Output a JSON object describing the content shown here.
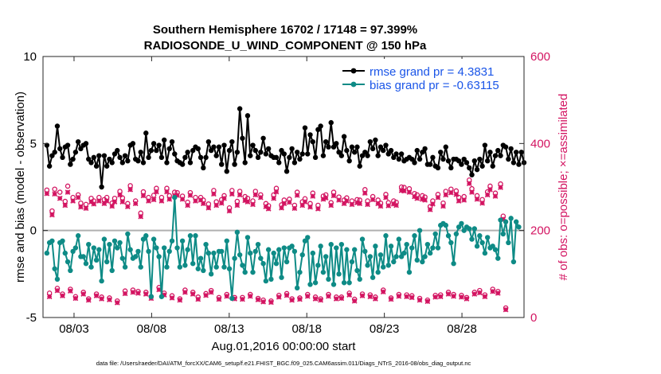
{
  "chart_data": {
    "type": "line",
    "title_line1": "Southern Hemisphere 16702 / 17148 = 97.399%",
    "title_line2": "RADIOSONDE_U_WIND_COMPONENT @ 150 hPa",
    "ylabel_left": "rmse and bias (model - observation)",
    "ylabel_right": "# of obs: o=possible; ×=assimilated",
    "xlabel": "Aug.01,2016 00:00:00 start",
    "footer": "data file: /Users/raeder/DAI/ATM_forcXX/CAM6_setup/f.e21.FHIST_BGC.f09_025.CAM6assim.011/Diags_NTrS_2016-08/obs_diag_output.nc",
    "ylim_left": [
      -5,
      10
    ],
    "ylim_right": [
      0,
      600
    ],
    "xlim_days": [
      0,
      31
    ],
    "yticks_left": [
      -5,
      0,
      5,
      10
    ],
    "yticks_left_labels": [
      "-5",
      "0",
      "5",
      "10"
    ],
    "yticks_right": [
      0,
      200,
      400,
      600
    ],
    "yticks_right_labels": [
      "0",
      "200",
      "400",
      "600"
    ],
    "xticks_days": [
      2,
      7,
      12,
      17,
      22,
      27
    ],
    "xtick_labels": [
      "08/03",
      "08/08",
      "08/13",
      "08/18",
      "08/23",
      "08/28"
    ],
    "colors": {
      "rmse": "#000000",
      "bias": "#0e8b86",
      "obs": "#d31461",
      "zero": "#b0b0b0",
      "legend_text": "#1a55e8"
    },
    "legend": [
      {
        "name": "rmse grand pr = 4.3831",
        "series": "rmse"
      },
      {
        "name": "bias grand pr = -0.63115",
        "series": "bias"
      }
    ],
    "rmse": [
      4.9,
      3.7,
      4.3,
      4.5,
      6.0,
      4.7,
      4.2,
      4.8,
      4.9,
      3.8,
      4.1,
      4.5,
      5.1,
      4.7,
      4.9,
      5.0,
      4.1,
      3.9,
      4.2,
      3.7,
      4.3,
      2.5,
      4.3,
      3.7,
      4.1,
      3.9,
      4.4,
      4.6,
      4.2,
      3.9,
      4.3,
      4.0,
      4.9,
      5.0,
      4.1,
      4.0,
      4.5,
      3.9,
      5.6,
      4.2,
      4.6,
      5.0,
      4.6,
      4.9,
      4.2,
      5.2,
      3.9,
      4.7,
      5.1,
      4.4,
      4.0,
      3.9,
      3.8,
      4.2,
      4.5,
      3.9,
      4.6,
      4.8,
      4.7,
      4.2,
      3.6,
      4.2,
      5.1,
      4.6,
      4.8,
      4.3,
      4.8,
      3.8,
      4.9,
      3.4,
      4.6,
      5.1,
      3.8,
      4.5,
      7.0,
      5.3,
      3.9,
      6.6,
      4.3,
      4.9,
      4.6,
      4.2,
      4.5,
      5.3,
      4.4,
      4.7,
      4.3,
      4.2,
      4.2,
      3.9,
      4.6,
      4.4,
      3.4,
      4.2,
      4.7,
      3.9,
      4.5,
      4.1,
      4.4,
      5.9,
      4.4,
      5.5,
      5.1,
      4.2,
      5.8,
      6.0,
      4.3,
      5.1,
      4.8,
      6.2,
      4.8,
      5.0,
      4.5,
      4.3,
      5.4,
      4.6,
      4.0,
      4.8,
      4.5,
      4.8,
      3.7,
      4.3,
      4.5,
      4.3,
      5.1,
      4.7,
      5.2,
      4.3,
      4.8,
      4.6,
      4.9,
      4.4,
      4.6,
      4.2,
      4.4,
      4.1,
      4.4,
      4.0,
      4.1,
      4.2,
      4.1,
      3.9,
      4.6,
      4.1,
      4.5,
      4.7,
      3.8,
      3.8,
      4.2,
      3.7,
      3.6,
      4.5,
      4.1,
      4.8,
      4.0,
      3.6,
      4.1,
      4.1,
      4.0,
      3.8,
      4.1,
      3.9,
      3.6,
      3.2,
      4.0,
      3.5,
      4.1,
      3.7,
      4.9,
      4.0,
      4.5,
      3.7,
      4.3,
      4.6,
      4.3,
      4.9,
      4.8,
      4.1,
      4.7,
      3.9,
      4.5,
      3.8,
      4.5,
      3.9
    ],
    "bias": [
      -1.3,
      -0.7,
      -0.6,
      -2.2,
      -2.8,
      -0.7,
      -0.6,
      -1.3,
      -1.8,
      -2.3,
      -1.2,
      -1.0,
      -0.3,
      -1.5,
      -1.5,
      -1.9,
      -0.8,
      -2.1,
      -1.0,
      -1.7,
      -1.1,
      -2.9,
      -0.5,
      -1.8,
      -0.8,
      -2.3,
      -0.6,
      -1.0,
      -0.7,
      -1.6,
      -2.1,
      -0.2,
      -1.1,
      -1.6,
      -1.5,
      -1.2,
      -2.1,
      -0.5,
      -0.3,
      -1.2,
      -3.8,
      -0.5,
      -1.0,
      -1.5,
      -3.8,
      -1.0,
      -2.1,
      -1.2,
      -0.6,
      1.9,
      -1.0,
      -2.1,
      -0.6,
      -2.0,
      -1.1,
      -0.3,
      -1.9,
      -0.3,
      -2.2,
      -1.6,
      -2.3,
      -0.8,
      -1.3,
      -2.5,
      -1.3,
      -2.1,
      -1.2,
      -1.2,
      -2.1,
      -0.6,
      -2.2,
      -3.9,
      -1.6,
      -0.1,
      -1.4,
      -2.0,
      -2.4,
      -0.4,
      -1.3,
      -2.4,
      -1.2,
      -0.8,
      -1.6,
      -1.9,
      -2.9,
      -1.1,
      -2.8,
      -1.3,
      -1.9,
      -1.1,
      -2.7,
      -1.0,
      -1.8,
      -1.0,
      -0.9,
      -1.2,
      -3.3,
      -2.4,
      -1.4,
      -0.6,
      -0.4,
      -3.1,
      -1.3,
      -3.0,
      -2.0,
      -0.9,
      -2.4,
      -1.5,
      -2.8,
      -0.8,
      -3.1,
      -1.0,
      -2.5,
      -0.8,
      -3.0,
      -1.1,
      -3.0,
      -1.8,
      -1.1,
      -2.3,
      -2.8,
      -0.5,
      -1.2,
      -2.0,
      -1.5,
      -2.7,
      -0.9,
      -2.4,
      -1.4,
      -2.1,
      -0.3,
      -2.0,
      -0.9,
      -1.8,
      -1.5,
      -0.5,
      -1.5,
      -1.3,
      -0.8,
      -2.4,
      -1.0,
      -0.3,
      -1.7,
      0.0,
      -1.8,
      -1.5,
      -0.8,
      -1.3,
      -1.0,
      -0.2,
      -1.0,
      0.3,
      0.4,
      0.3,
      -0.3,
      -0.7,
      -1.9,
      -0.2,
      0.2,
      0.4,
      0.0,
      0.2,
      0.1,
      -0.5,
      0.1,
      -0.9,
      -0.3,
      -0.7,
      -1.3,
      -0.4,
      -1.0,
      -0.9,
      -1.1,
      -1.6,
      0.6,
      -0.2,
      0.5,
      -0.7,
      0.7,
      -1.8,
      0.5,
      0.2
    ],
    "possible": [
      293,
      56,
      245,
      295,
      67,
      288,
      54,
      267,
      302,
      65,
      276,
      48,
      282,
      263,
      58,
      260,
      43,
      274,
      268,
      54,
      276,
      47,
      271,
      276,
      45,
      263,
      274,
      38,
      290,
      275,
      61,
      262,
      303,
      63,
      268,
      60,
      240,
      289,
      58,
      276,
      48,
      281,
      297,
      69,
      276,
      56,
      297,
      280,
      50,
      288,
      287,
      43,
      279,
      63,
      265,
      287,
      58,
      276,
      47,
      276,
      270,
      55,
      261,
      62,
      292,
      266,
      46,
      271,
      280,
      53,
      252,
      292,
      46,
      267,
      290,
      46,
      278,
      274,
      53,
      268,
      290,
      44,
      282,
      40,
      262,
      257,
      38,
      282,
      297,
      51,
      259,
      270,
      55,
      272,
      43,
      258,
      288,
      45,
      266,
      273,
      53,
      262,
      286,
      47,
      258,
      43,
      279,
      282,
      53,
      264,
      288,
      47,
      277,
      47,
      270,
      275,
      56,
      268,
      42,
      271,
      270,
      54,
      294,
      268,
      52,
      278,
      47,
      270,
      263,
      63,
      283,
      264,
      45,
      268,
      265,
      53,
      300,
      299,
      52,
      296,
      50,
      285,
      282,
      44,
      280,
      277,
      40,
      255,
      268,
      51,
      283,
      52,
      263,
      290,
      58,
      295,
      53,
      291,
      276,
      51,
      278,
      46,
      316,
      296,
      58,
      280,
      62,
      271,
      52,
      289,
      302,
      65,
      286,
      60,
      307,
      233,
      22
    ],
    "assimilated": [
      285,
      48,
      236,
      284,
      62,
      274,
      50,
      258,
      288,
      61,
      268,
      44,
      276,
      254,
      54,
      251,
      40,
      266,
      261,
      50,
      268,
      43,
      262,
      268,
      41,
      256,
      266,
      34,
      282,
      266,
      55,
      255,
      294,
      58,
      262,
      56,
      232,
      280,
      54,
      268,
      44,
      271,
      289,
      64,
      268,
      52,
      289,
      272,
      45,
      280,
      281,
      40,
      272,
      58,
      258,
      281,
      54,
      268,
      42,
      270,
      262,
      51,
      252,
      58,
      284,
      258,
      42,
      263,
      274,
      49,
      245,
      284,
      43,
      258,
      282,
      42,
      269,
      266,
      49,
      260,
      282,
      41,
      276,
      36,
      255,
      250,
      35,
      274,
      289,
      47,
      252,
      262,
      51,
      265,
      40,
      251,
      281,
      42,
      258,
      266,
      49,
      254,
      279,
      43,
      250,
      40,
      272,
      275,
      49,
      258,
      280,
      43,
      270,
      44,
      262,
      268,
      52,
      260,
      38,
      264,
      262,
      50,
      286,
      260,
      48,
      271,
      43,
      262,
      256,
      59,
      276,
      257,
      42,
      261,
      258,
      49,
      292,
      291,
      48,
      288,
      46,
      278,
      274,
      40,
      272,
      270,
      37,
      248,
      261,
      47,
      276,
      48,
      256,
      282,
      54,
      287,
      49,
      283,
      268,
      47,
      270,
      43,
      308,
      288,
      54,
      272,
      57,
      263,
      48,
      282,
      294,
      60,
      279,
      56,
      299,
      226,
      18
    ]
  }
}
